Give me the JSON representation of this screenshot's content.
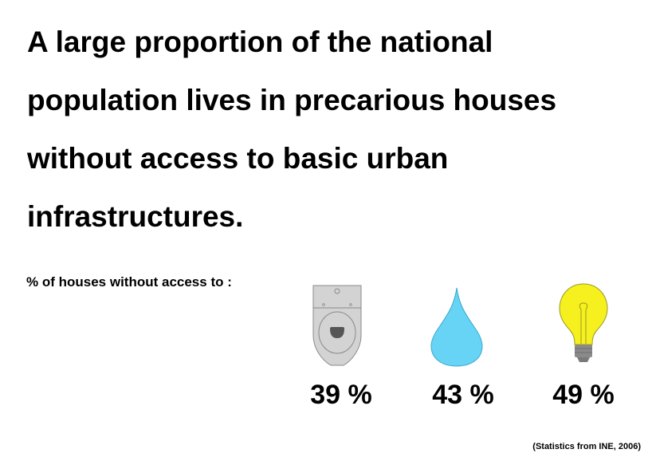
{
  "headline": {
    "lines": [
      "A large proportion of the national",
      "population lives in precarious houses",
      "without access to basic urban",
      "infrastructures."
    ]
  },
  "subheading": "% of houses without access to :",
  "items": [
    {
      "icon": "toilet-icon",
      "value": "39 %",
      "percent": 39,
      "color": "#d0d0d0"
    },
    {
      "icon": "water-drop-icon",
      "value": "43 %",
      "percent": 43,
      "color": "#67d4f5"
    },
    {
      "icon": "light-bulb-icon",
      "value": "49 %",
      "percent": 49,
      "color": "#f5f01e"
    }
  ],
  "source": "(Statistics from INE, 2006)"
}
